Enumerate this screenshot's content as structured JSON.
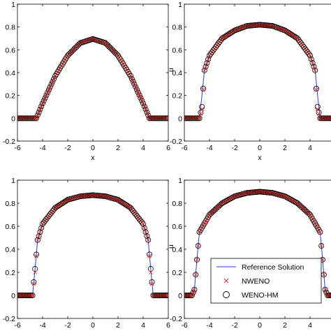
{
  "chart_data": [
    {
      "type": "line",
      "xlabel": "x",
      "ylabel": "",
      "xlim": [
        -6,
        6
      ],
      "ylim": [
        -0.2,
        1.0
      ],
      "xticks": [
        "-6",
        "-4",
        "-2",
        "0",
        "2",
        "4",
        "6"
      ],
      "yticks": [
        "-0.2",
        "0",
        "0.2",
        "0.4",
        "0.6",
        "0.8",
        "1"
      ],
      "series": [
        {
          "name": "Reference Solution",
          "x": [
            -6.0,
            -5.5,
            -5.0,
            -4.5,
            -4.0,
            -3.0,
            -2.0,
            -1.0,
            0.0,
            1.0,
            2.0,
            3.0,
            4.0,
            4.5,
            5.0,
            5.5,
            6.0
          ],
          "y": [
            0.0,
            0.0,
            0.0,
            0.0,
            0.13,
            0.37,
            0.55,
            0.66,
            0.695,
            0.66,
            0.55,
            0.37,
            0.13,
            0.0,
            0.0,
            0.0,
            0.0
          ]
        },
        {
          "name": "NWENO",
          "x": [
            -6.0,
            -5.5,
            -5.0,
            -4.5,
            -4.0,
            -3.0,
            -2.0,
            -1.0,
            0.0,
            1.0,
            2.0,
            3.0,
            4.0,
            4.5,
            5.0,
            5.5,
            6.0
          ],
          "y": [
            0.0,
            0.0,
            0.0,
            0.0,
            0.13,
            0.37,
            0.55,
            0.66,
            0.695,
            0.66,
            0.55,
            0.37,
            0.13,
            0.0,
            0.0,
            0.0,
            0.0
          ]
        },
        {
          "name": "WENO-HM",
          "x": [
            -6.0,
            -5.5,
            -5.0,
            -4.5,
            -4.0,
            -3.0,
            -2.0,
            -1.0,
            0.0,
            1.0,
            2.0,
            3.0,
            4.0,
            4.5,
            5.0,
            5.5,
            6.0
          ],
          "y": [
            0.0,
            0.0,
            0.0,
            0.0,
            0.13,
            0.37,
            0.55,
            0.66,
            0.695,
            0.66,
            0.55,
            0.37,
            0.13,
            0.0,
            0.0,
            0.0,
            0.0
          ]
        }
      ]
    },
    {
      "type": "line",
      "xlabel": "x",
      "ylabel": "u",
      "xlim": [
        -6,
        6
      ],
      "ylim": [
        -0.2,
        1.0
      ],
      "xticks": [
        "-6",
        "-4",
        "-2",
        "0",
        "2",
        "4"
      ],
      "yticks": [
        "-0.2",
        "0",
        "0.2",
        "0.4",
        "0.6",
        "0.8",
        "1"
      ],
      "series": [
        {
          "name": "Reference Solution",
          "x": [
            -6.0,
            -5.2,
            -5.0,
            -4.8,
            -4.6,
            -4.4,
            -4.0,
            -3.0,
            -2.0,
            -1.0,
            0.0,
            1.0,
            2.0,
            3.0,
            4.0,
            4.4,
            4.6,
            4.8,
            5.0,
            5.2,
            6.0
          ],
          "y": [
            0.0,
            0.0,
            0.0,
            0.0,
            0.2,
            0.42,
            0.55,
            0.7,
            0.77,
            0.81,
            0.82,
            0.81,
            0.77,
            0.7,
            0.55,
            0.42,
            0.2,
            0.0,
            0.0,
            0.0,
            0.0
          ]
        },
        {
          "name": "NWENO",
          "x": [
            -6.0,
            -5.2,
            -5.0,
            -4.8,
            -4.6,
            -4.4,
            -4.0,
            -3.0,
            -2.0,
            -1.0,
            0.0,
            1.0,
            2.0,
            3.0,
            4.0,
            4.4,
            4.6,
            4.8,
            5.0,
            5.2,
            6.0
          ],
          "y": [
            0.0,
            0.0,
            0.0,
            0.0,
            0.08,
            0.42,
            0.55,
            0.7,
            0.77,
            0.81,
            0.82,
            0.81,
            0.77,
            0.7,
            0.55,
            0.42,
            0.08,
            0.0,
            0.0,
            0.0,
            0.0
          ]
        },
        {
          "name": "WENO-HM",
          "x": [
            -6.0,
            -5.2,
            -5.0,
            -4.8,
            -4.6,
            -4.4,
            -4.0,
            -3.0,
            -2.0,
            -1.0,
            0.0,
            1.0,
            2.0,
            3.0,
            4.0,
            4.4,
            4.6,
            4.8,
            5.0,
            5.2,
            6.0
          ],
          "y": [
            0.0,
            0.0,
            0.0,
            0.0,
            0.1,
            0.42,
            0.55,
            0.7,
            0.77,
            0.81,
            0.82,
            0.81,
            0.77,
            0.7,
            0.55,
            0.42,
            0.1,
            0.0,
            0.0,
            0.0,
            0.0
          ]
        }
      ]
    },
    {
      "type": "line",
      "xlabel": "x",
      "ylabel": "",
      "xlim": [
        -6,
        6
      ],
      "ylim": [
        -0.2,
        1.0
      ],
      "xticks": [
        "-6",
        "-4",
        "-2",
        "0",
        "2",
        "4",
        "6"
      ],
      "yticks": [
        "-0.2",
        "0",
        "0.2",
        "0.4",
        "0.6",
        "0.8",
        "1"
      ],
      "series": [
        {
          "name": "Reference Solution",
          "x": [
            -6.0,
            -5.2,
            -5.0,
            -4.8,
            -4.6,
            -4.4,
            -4.0,
            -3.0,
            -2.0,
            -1.0,
            0.0,
            1.0,
            2.0,
            3.0,
            4.0,
            4.4,
            4.6,
            4.8,
            5.0,
            5.2,
            6.0
          ],
          "y": [
            0.0,
            0.0,
            0.0,
            0.0,
            0.23,
            0.48,
            0.62,
            0.76,
            0.83,
            0.86,
            0.87,
            0.86,
            0.83,
            0.76,
            0.62,
            0.48,
            0.23,
            0.0,
            0.0,
            0.0,
            0.0
          ]
        },
        {
          "name": "NWENO",
          "x": [
            -6.0,
            -5.2,
            -5.0,
            -4.8,
            -4.6,
            -4.4,
            -4.0,
            -3.0,
            -2.0,
            -1.0,
            0.0,
            1.0,
            2.0,
            3.0,
            4.0,
            4.4,
            4.6,
            4.8,
            5.0,
            5.2,
            6.0
          ],
          "y": [
            0.0,
            0.0,
            0.0,
            0.0,
            0.2,
            0.48,
            0.62,
            0.76,
            0.83,
            0.86,
            0.87,
            0.86,
            0.83,
            0.76,
            0.62,
            0.48,
            0.2,
            0.0,
            0.0,
            0.0,
            0.0
          ]
        },
        {
          "name": "WENO-HM",
          "x": [
            -6.0,
            -5.2,
            -5.0,
            -4.8,
            -4.6,
            -4.4,
            -4.0,
            -3.0,
            -2.0,
            -1.0,
            0.0,
            1.0,
            2.0,
            3.0,
            4.0,
            4.4,
            4.6,
            4.8,
            5.0,
            5.2,
            6.0
          ],
          "y": [
            0.0,
            0.0,
            0.0,
            0.0,
            0.23,
            0.48,
            0.62,
            0.76,
            0.83,
            0.86,
            0.87,
            0.86,
            0.83,
            0.76,
            0.62,
            0.48,
            0.23,
            0.0,
            0.0,
            0.0,
            0.0
          ]
        }
      ]
    },
    {
      "type": "line",
      "xlabel": "x",
      "ylabel": "u",
      "xlim": [
        -6,
        6
      ],
      "ylim": [
        -0.2,
        1.0
      ],
      "xticks": [
        "-6",
        "-4",
        "-2",
        "0",
        "2",
        "4"
      ],
      "yticks": [
        "-0.2",
        "0",
        "0.2",
        "0.4",
        "0.6",
        "0.8",
        "1"
      ],
      "legend": {
        "position": "lower-right",
        "entries": [
          "Reference Solution",
          "NWENO",
          "WENO-HM"
        ]
      },
      "series": [
        {
          "name": "Reference Solution",
          "x": [
            -6.0,
            -5.6,
            -5.4,
            -5.2,
            -5.0,
            -4.8,
            -4.0,
            -3.0,
            -2.0,
            -1.0,
            0.0,
            1.0,
            2.0,
            3.0,
            4.0,
            4.8,
            5.0,
            5.2,
            5.4,
            5.6,
            6.0
          ],
          "y": [
            0.0,
            0.0,
            0.0,
            0.05,
            0.31,
            0.55,
            0.7,
            0.8,
            0.86,
            0.89,
            0.9,
            0.89,
            0.86,
            0.8,
            0.7,
            0.55,
            0.31,
            0.05,
            0.0,
            0.0,
            0.0
          ]
        },
        {
          "name": "NWENO",
          "x": [
            -6.0,
            -5.6,
            -5.4,
            -5.2,
            -5.0,
            -4.8,
            -4.0,
            -3.0,
            -2.0,
            -1.0,
            0.0,
            1.0,
            2.0,
            3.0,
            4.0,
            4.8,
            5.0,
            5.2,
            5.4,
            5.6,
            6.0
          ],
          "y": [
            0.0,
            0.0,
            0.0,
            0.05,
            0.31,
            0.55,
            0.7,
            0.8,
            0.86,
            0.89,
            0.9,
            0.89,
            0.86,
            0.8,
            0.7,
            0.55,
            0.31,
            0.05,
            0.0,
            0.0,
            0.0
          ]
        },
        {
          "name": "WENO-HM",
          "x": [
            -6.0,
            -5.6,
            -5.4,
            -5.2,
            -5.0,
            -4.8,
            -4.0,
            -3.0,
            -2.0,
            -1.0,
            0.0,
            1.0,
            2.0,
            3.0,
            4.0,
            4.8,
            5.0,
            5.2,
            5.4,
            5.6,
            6.0
          ],
          "y": [
            0.0,
            0.0,
            0.0,
            0.05,
            0.31,
            0.55,
            0.7,
            0.8,
            0.86,
            0.89,
            0.9,
            0.89,
            0.86,
            0.8,
            0.7,
            0.55,
            0.31,
            0.05,
            0.0,
            0.0,
            0.0
          ]
        }
      ]
    }
  ],
  "colors": {
    "reference": "#2b3fd0",
    "nweno": "#e0302a",
    "weno_hm": "#000000",
    "axes": "#000000",
    "background": "#ffffff"
  }
}
